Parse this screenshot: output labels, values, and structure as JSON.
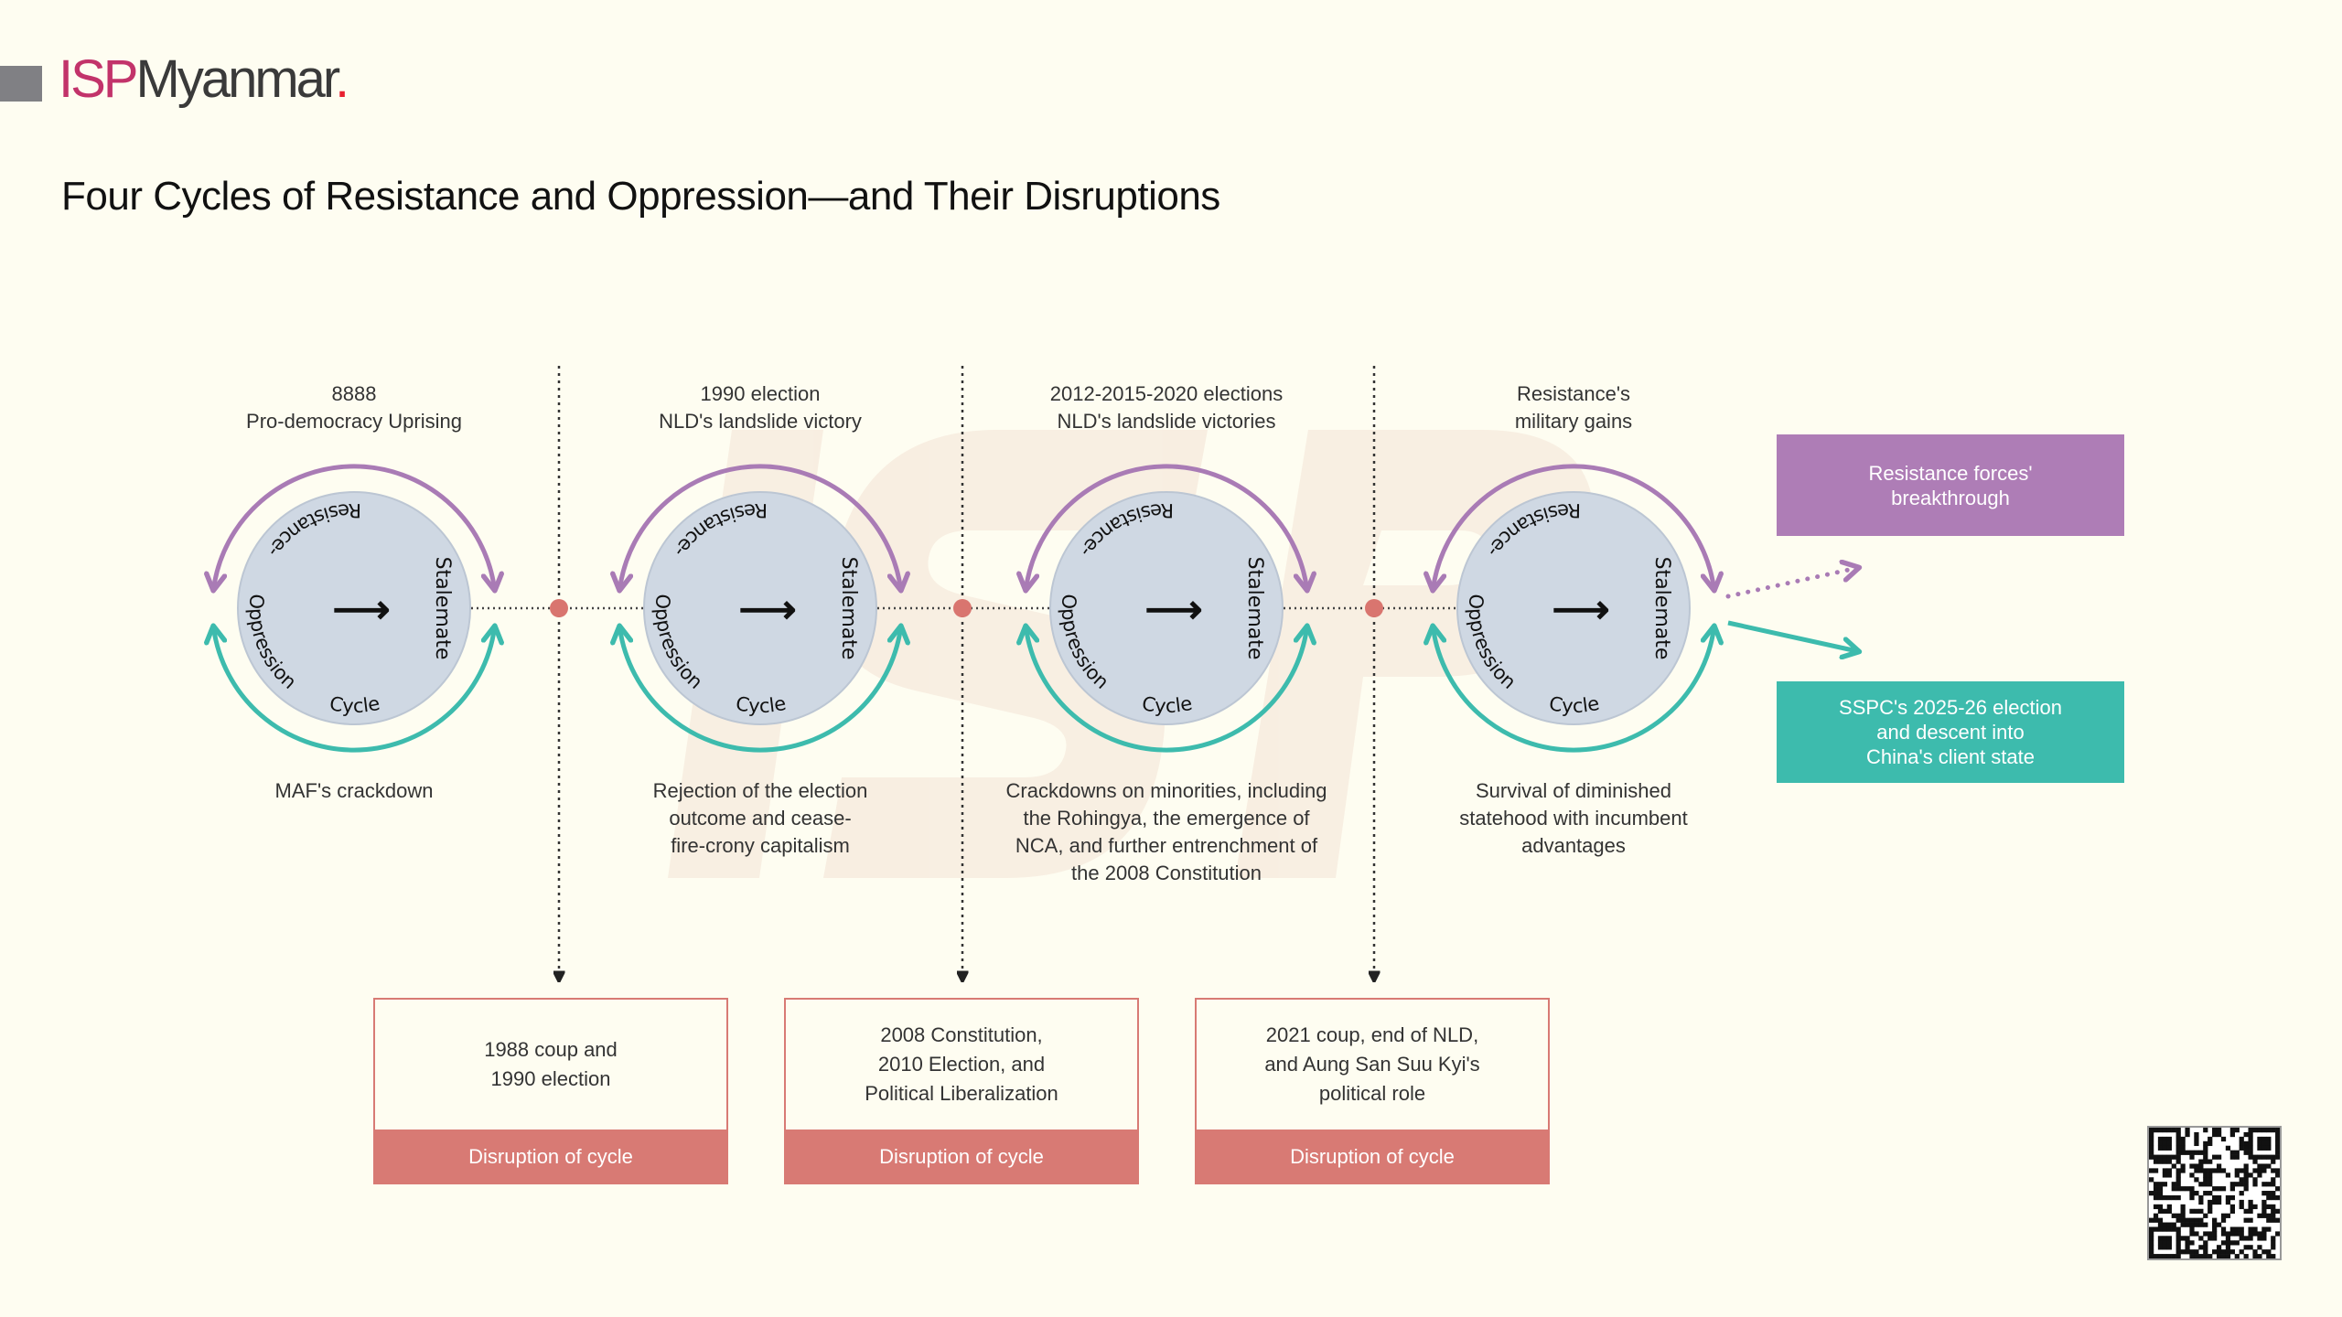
{
  "brand": {
    "isp": "ISP",
    "name": "Myanmar",
    "dot": "."
  },
  "title": "Four Cycles of Resistance and Oppression—and Their Disruptions",
  "watermark": "ISP",
  "colors": {
    "purple": "#a97bb5",
    "teal": "#3dbbad",
    "red": "#d87a74",
    "circle": "#cfd8e3",
    "background": "#fefdf1"
  },
  "cycle_text": {
    "arc": "Resistance-Oppression Cycle",
    "side": "Stalemate",
    "arrow": "⟶"
  },
  "cycles": [
    {
      "top": "8888\nPro-democracy Uprising",
      "bottom": "MAF's crackdown"
    },
    {
      "top": "1990 election\nNLD's landslide victory",
      "bottom": "Rejection of the election\noutcome and cease-\nfire-crony capitalism"
    },
    {
      "top": "2012-2015-2020 elections\nNLD's landslide victories",
      "bottom": "Crackdowns on minorities, including\nthe Rohingya, the emergence of\nNCA, and further entrenchment of\nthe 2008 Constitution"
    },
    {
      "top": "Resistance's\nmilitary gains",
      "bottom": "Survival of diminished\nstatehood with incumbent\nadvantages"
    }
  ],
  "disruptions": [
    {
      "text": "1988 coup and\n1990 election",
      "band": "Disruption of cycle"
    },
    {
      "text": "2008 Constitution,\n2010 Election, and\nPolitical Liberalization",
      "band": "Disruption of cycle"
    },
    {
      "text": "2021 coup, end of NLD,\nand Aung San Suu Kyi's\npolitical role",
      "band": "Disruption of cycle"
    }
  ],
  "outcomes": {
    "breakthrough": "Resistance forces'\nbreakthrough",
    "client_state": "SSPC's 2025-26 election\nand descent into\nChina's client state"
  },
  "qr_icon": "qr-code"
}
